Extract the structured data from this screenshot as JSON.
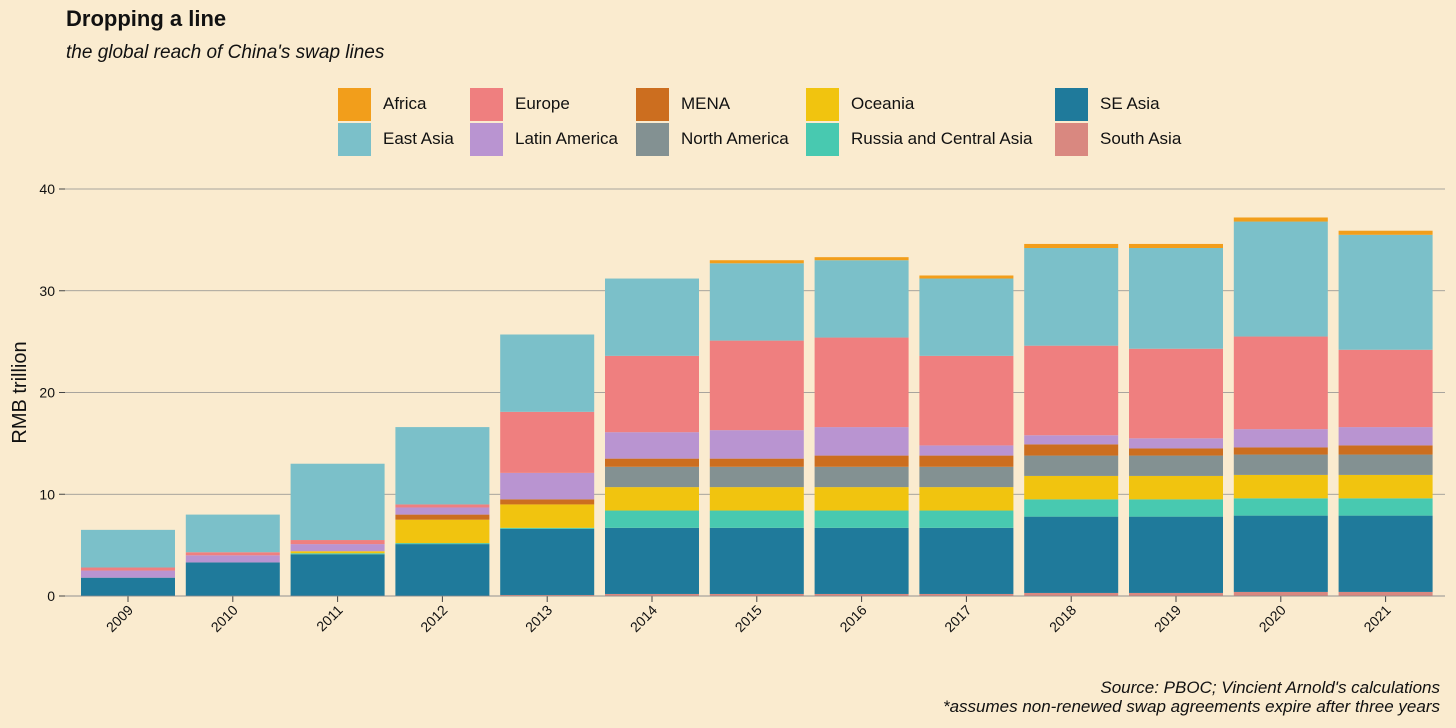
{
  "title": "Dropping a line",
  "subtitle": "the global reach of China's swap lines",
  "legend": [
    {
      "name": "Africa",
      "color": "#f29e1b"
    },
    {
      "name": "East Asia",
      "color": "#7bc0c9"
    },
    {
      "name": "Europe",
      "color": "#ef7f7f"
    },
    {
      "name": "Latin America",
      "color": "#b994d1"
    },
    {
      "name": "MENA",
      "color": "#cc6e1f"
    },
    {
      "name": "North America",
      "color": "#839192"
    },
    {
      "name": "Oceania",
      "color": "#f1c40f"
    },
    {
      "name": "Russia and Central Asia",
      "color": "#48c9b0"
    },
    {
      "name": "SE Asia",
      "color": "#1f7a9b"
    },
    {
      "name": "South Asia",
      "color": "#d98880"
    }
  ],
  "footnote": {
    "line1": "Source: PBOC; Vincient Arnold's calculations",
    "line2": "*assumes non-renewed swap agreements expire after three years"
  },
  "chart_data": {
    "type": "bar",
    "stacked": true,
    "ylabel": "RMB trillion",
    "xlabel": "",
    "ylim": [
      0,
      40
    ],
    "yticks": [
      0,
      10,
      20,
      30,
      40
    ],
    "grid": true,
    "legend_position": "top",
    "categories": [
      "2009",
      "2010",
      "2011",
      "2012",
      "2013",
      "2014",
      "2015",
      "2016",
      "2017",
      "2018",
      "2019",
      "2020",
      "2021"
    ],
    "series": [
      {
        "name": "South Asia",
        "color": "#d98880",
        "values": [
          0,
          0,
          0,
          0,
          0.1,
          0.2,
          0.2,
          0.2,
          0.2,
          0.3,
          0.3,
          0.4,
          0.4
        ]
      },
      {
        "name": "SE Asia",
        "color": "#1f7a9b",
        "values": [
          1.8,
          3.3,
          4.1,
          5.1,
          6.5,
          6.5,
          6.5,
          6.5,
          6.5,
          7.5,
          7.5,
          7.5,
          7.5
        ]
      },
      {
        "name": "Russia and Central Asia",
        "color": "#48c9b0",
        "values": [
          0,
          0,
          0.1,
          0.1,
          0.1,
          1.7,
          1.7,
          1.7,
          1.7,
          1.7,
          1.7,
          1.7,
          1.7
        ]
      },
      {
        "name": "Oceania",
        "color": "#f1c40f",
        "values": [
          0,
          0,
          0.2,
          2.3,
          2.3,
          2.3,
          2.3,
          2.3,
          2.3,
          2.3,
          2.3,
          2.3,
          2.3
        ]
      },
      {
        "name": "North America",
        "color": "#839192",
        "values": [
          0,
          0,
          0,
          0,
          0,
          2.0,
          2.0,
          2.0,
          2.0,
          2.0,
          2.0,
          2.0,
          2.0
        ]
      },
      {
        "name": "MENA",
        "color": "#cc6e1f",
        "values": [
          0,
          0,
          0,
          0.5,
          0.5,
          0.8,
          0.8,
          1.1,
          1.1,
          1.1,
          0.7,
          0.7,
          0.9
        ]
      },
      {
        "name": "Latin America",
        "color": "#b994d1",
        "values": [
          0.7,
          0.7,
          0.7,
          0.7,
          2.6,
          2.6,
          2.8,
          2.8,
          1.0,
          0.9,
          1.0,
          1.8,
          1.8
        ]
      },
      {
        "name": "Europe",
        "color": "#ef7f7f",
        "values": [
          0.3,
          0.3,
          0.4,
          0.3,
          6.0,
          7.5,
          8.8,
          8.8,
          8.8,
          8.8,
          8.8,
          9.1,
          7.6
        ]
      },
      {
        "name": "East Asia",
        "color": "#7bc0c9",
        "values": [
          3.7,
          3.7,
          7.5,
          7.6,
          7.6,
          7.6,
          7.6,
          7.6,
          7.6,
          9.6,
          9.9,
          11.3,
          11.3
        ]
      },
      {
        "name": "Africa",
        "color": "#f29e1b",
        "values": [
          0,
          0,
          0,
          0,
          0,
          0,
          0.3,
          0.3,
          0.3,
          0.4,
          0.4,
          0.4,
          0.4
        ]
      }
    ]
  }
}
